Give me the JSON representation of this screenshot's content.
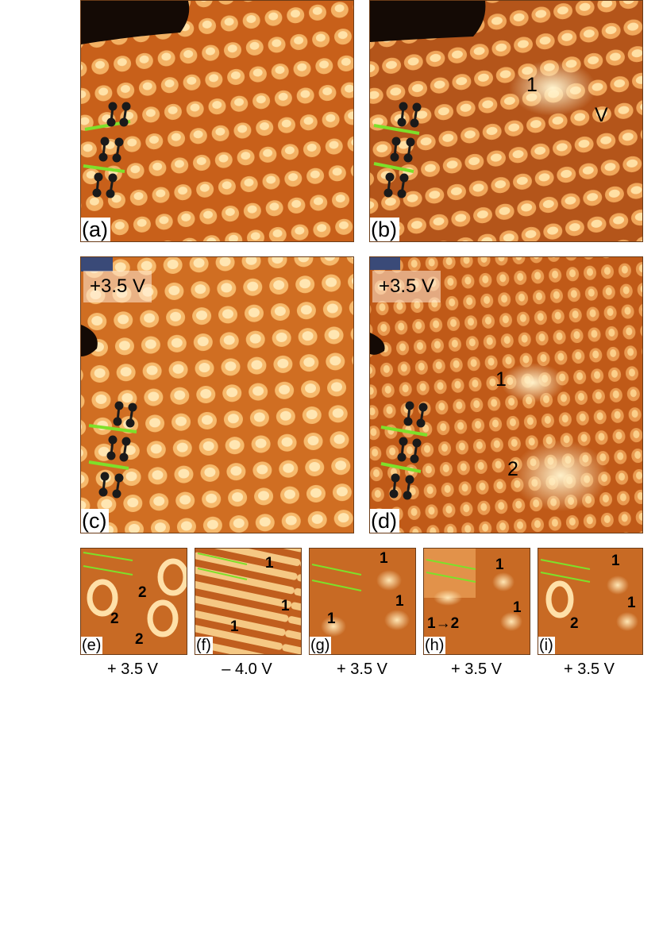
{
  "panels": {
    "a": {
      "label": "(a)"
    },
    "b": {
      "label": "(b)",
      "marks": [
        "1",
        "V"
      ]
    },
    "c": {
      "label": "(c)",
      "bias": "+3.5 V"
    },
    "d": {
      "label": "(d)",
      "bias": "+3.5 V",
      "marks": [
        "1",
        "2"
      ]
    },
    "e": {
      "label": "(e)",
      "marks": [
        "2",
        "2",
        "2"
      ],
      "caption": "+ 3.5 V"
    },
    "f": {
      "label": "(f)",
      "marks": [
        "1",
        "1",
        "1"
      ],
      "caption": "– 4.0 V"
    },
    "g": {
      "label": "(g)",
      "marks": [
        "1",
        "1",
        "1"
      ],
      "caption": "+ 3.5 V"
    },
    "h": {
      "label": "(h)",
      "marks": [
        "1",
        "1",
        "1→2"
      ],
      "caption": "+ 3.5 V"
    },
    "i": {
      "label": "(i)",
      "marks": [
        "1",
        "1",
        "2"
      ],
      "caption": "+ 3.5 V"
    }
  },
  "colors": {
    "substrate": "#c8601a",
    "bright": "#ffe2a8",
    "dark": "#140a05",
    "guide_line": "#7ee02a",
    "dimer": "#1a1a1a"
  }
}
